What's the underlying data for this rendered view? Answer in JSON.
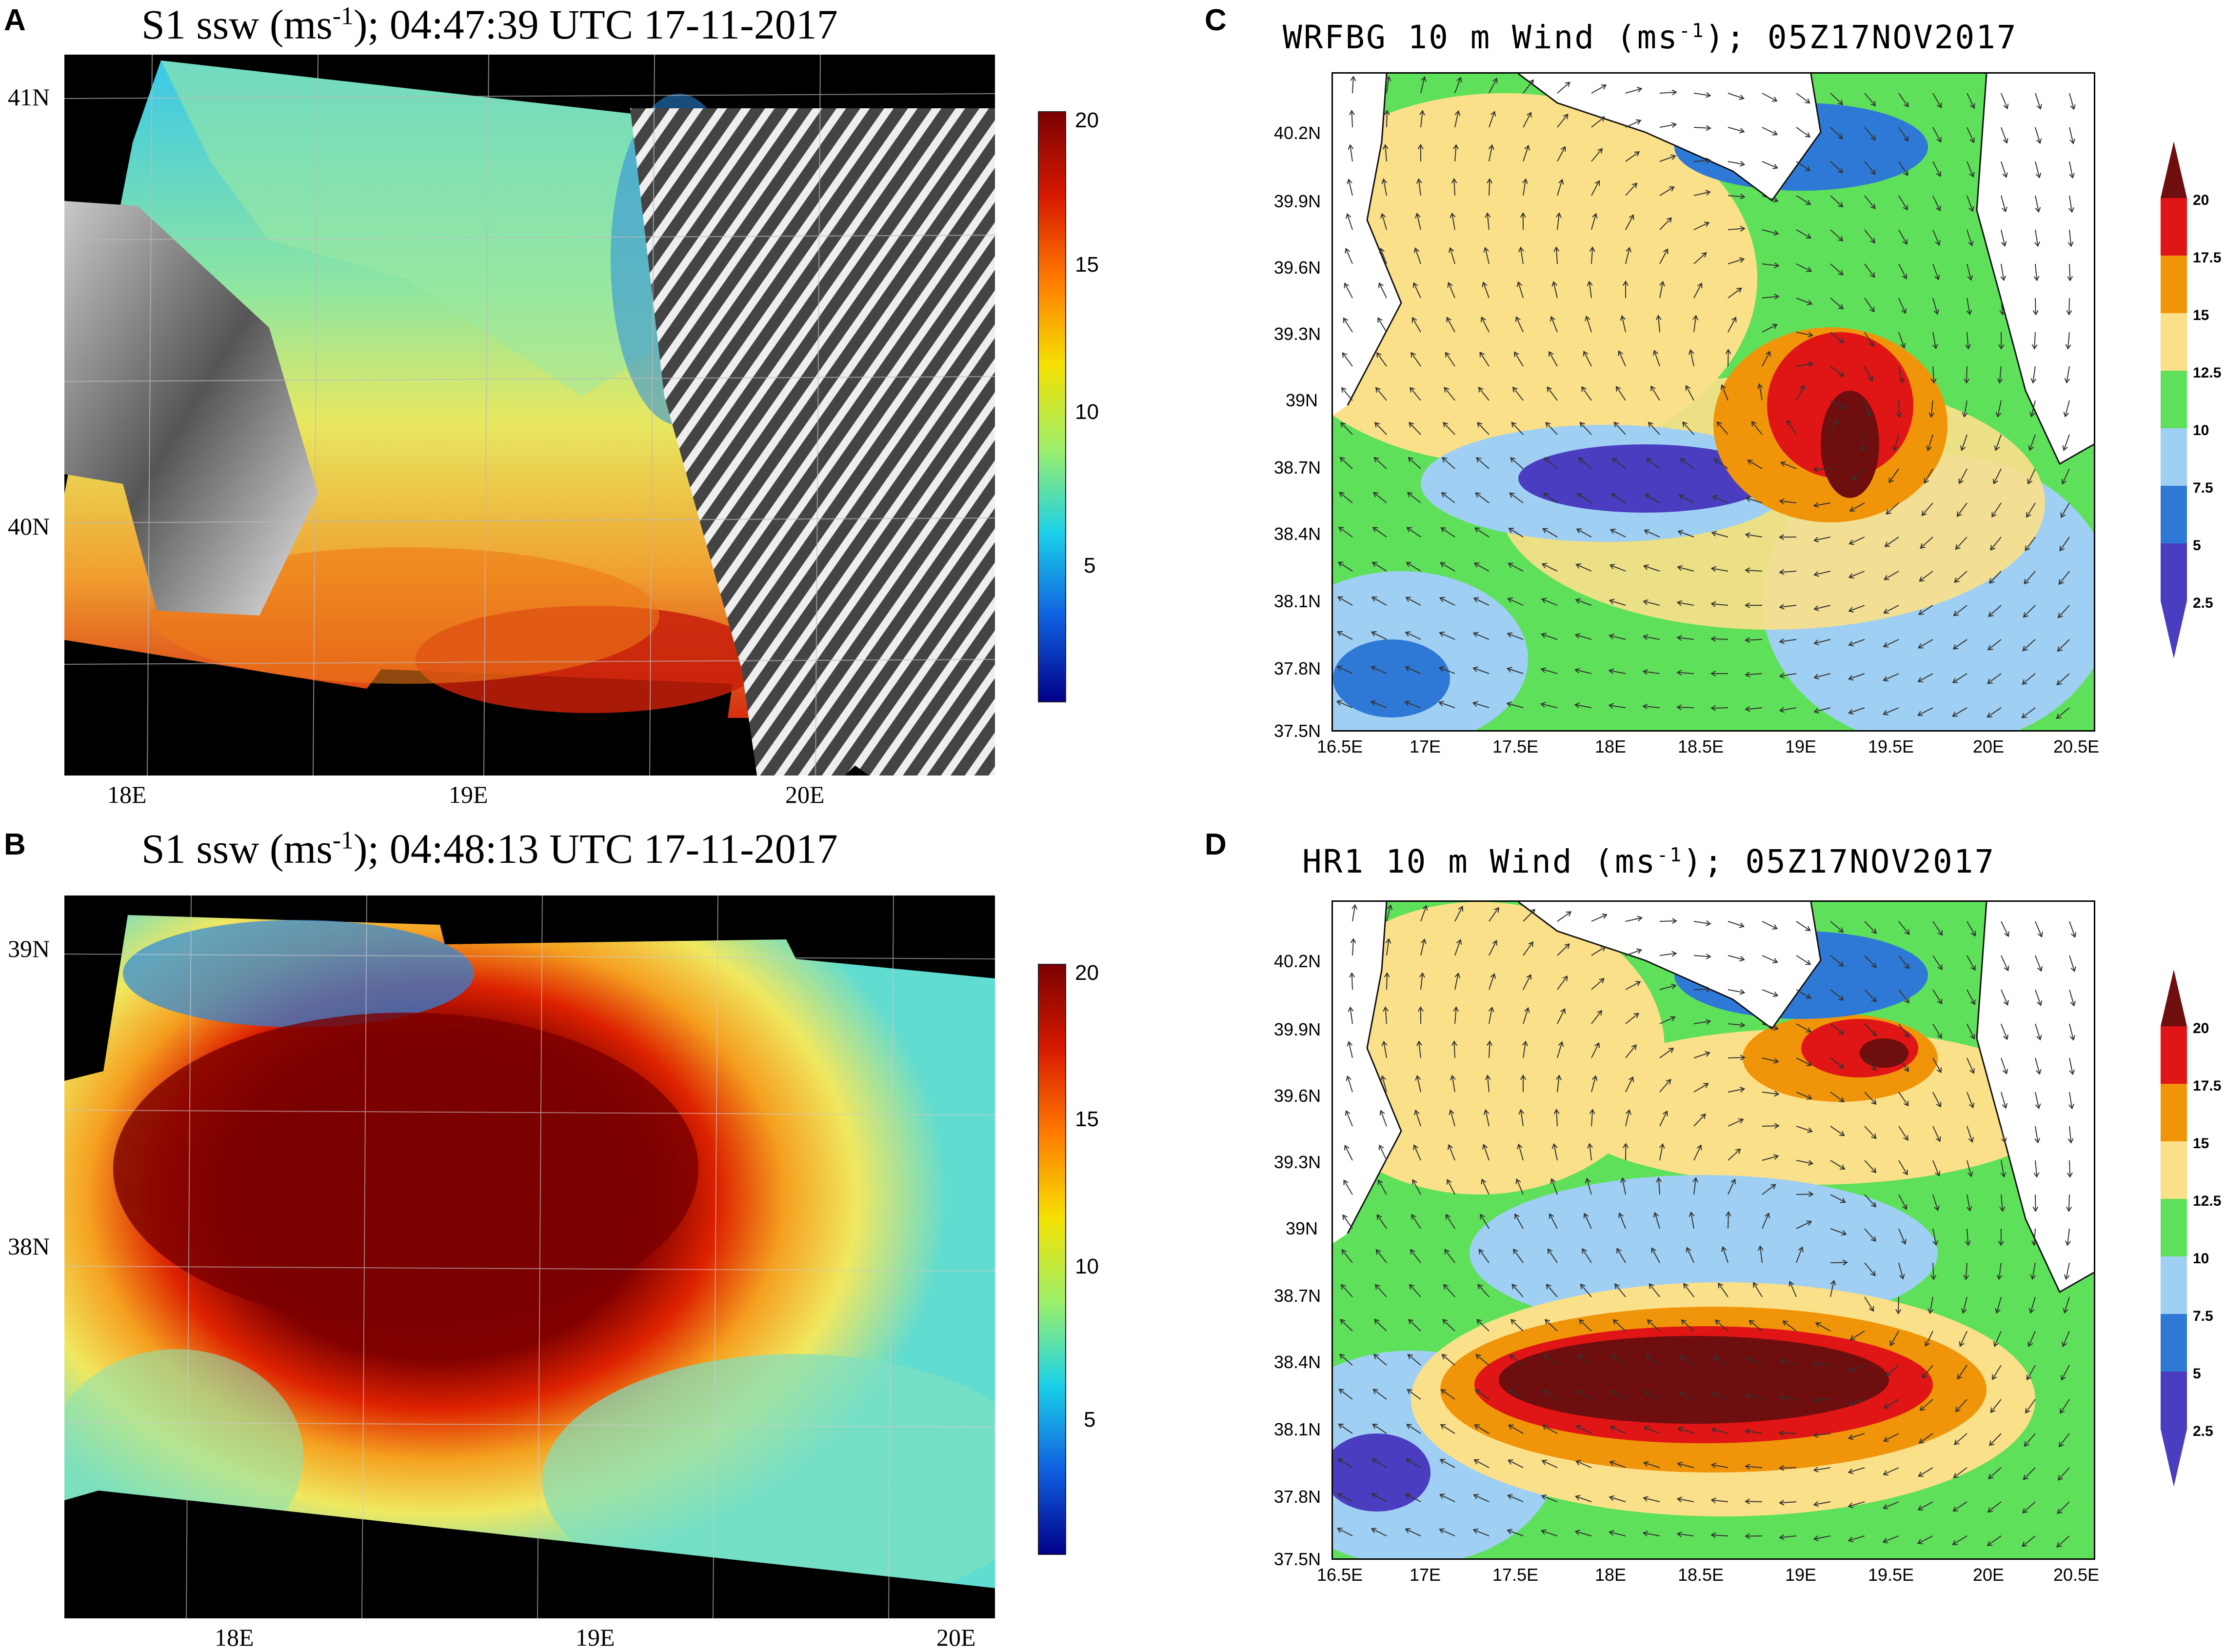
{
  "panels": [
    {
      "letter": "A",
      "title_pre": "S1 ssw (ms",
      "title_sup": "-1",
      "title_post": "); 04:47:39 UTC 17-11-2017",
      "lat_labels": [
        "41N",
        "40N"
      ],
      "lon_labels": [
        "18E",
        "19E",
        "20E"
      ],
      "colorbar_ticks": [
        "20",
        "15",
        "10",
        "5"
      ]
    },
    {
      "letter": "B",
      "title_pre": "S1 ssw (ms",
      "title_sup": "-1",
      "title_post": "); 04:48:13 UTC 17-11-2017",
      "lat_labels": [
        "39N",
        "38N"
      ],
      "lon_labels": [
        "18E",
        "19E",
        "20E"
      ],
      "colorbar_ticks": [
        "20",
        "15",
        "10",
        "5"
      ]
    },
    {
      "letter": "C",
      "title_pre": "WRFBG 10 m Wind (ms",
      "title_sup": "-1",
      "title_post": "); 05Z17NOV2017",
      "lat_labels": [
        "40.2N",
        "39.9N",
        "39.6N",
        "39.3N",
        "39N",
        "38.7N",
        "38.4N",
        "38.1N",
        "37.8N",
        "37.5N"
      ],
      "lon_labels": [
        "16.5E",
        "17E",
        "17.5E",
        "18E",
        "18.5E",
        "19E",
        "19.5E",
        "20E",
        "20.5E"
      ],
      "colorbar_ticks": [
        "20",
        "17.5",
        "15",
        "12.5",
        "10",
        "7.5",
        "5",
        "2.5"
      ]
    },
    {
      "letter": "D",
      "title_pre": "HR1 10 m Wind (ms",
      "title_sup": "-1",
      "title_post": "); 05Z17NOV2017",
      "lat_labels": [
        "40.2N",
        "39.9N",
        "39.6N",
        "39.3N",
        "39N",
        "38.7N",
        "38.4N",
        "38.1N",
        "37.8N",
        "37.5N"
      ],
      "lon_labels": [
        "16.5E",
        "17E",
        "17.5E",
        "18E",
        "18.5E",
        "19E",
        "19.5E",
        "20E",
        "20.5E"
      ],
      "colorbar_ticks": [
        "20",
        "17.5",
        "15",
        "12.5",
        "10",
        "7.5",
        "5",
        "2.5"
      ]
    }
  ],
  "colors": {
    "sar_scale": [
      "#7a0000",
      "#d81a00",
      "#ff7a00",
      "#f5e000",
      "#9ef06a",
      "#1ad0e8",
      "#1060e0",
      "#00008a"
    ],
    "model_levels": [
      "#6e0e0e",
      "#e01515",
      "#f0940a",
      "#fbe08a",
      "#5fe05a",
      "#9fcff2",
      "#2f79d6",
      "#4a3dbf"
    ]
  }
}
